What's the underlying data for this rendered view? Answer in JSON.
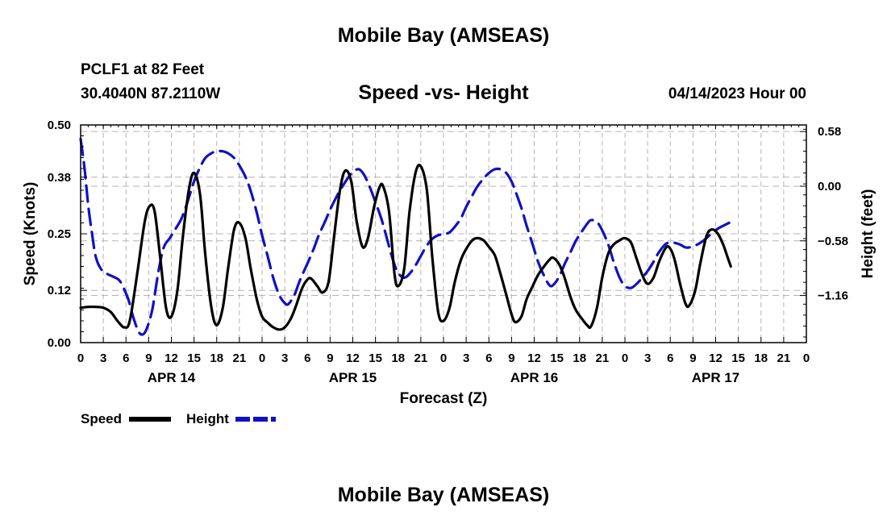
{
  "page": {
    "title_top": "Mobile Bay (AMSEAS)",
    "title_bottom": "Mobile Bay (AMSEAS)",
    "station": "PCLF1 at 82 Feet",
    "coords": "30.4040N  87.2110W",
    "subtitle": "Speed -vs- Height",
    "datetime": "04/14/2023 Hour 00"
  },
  "colors": {
    "speed": "#000000",
    "height": "#1010c8",
    "grid": "#b4b4b4"
  },
  "chart_data": {
    "type": "line",
    "title": "Speed -vs- Height",
    "xlabel": "Forecast (Z)",
    "ylabel": "Speed (Knots)",
    "y2label": "Height (feet)",
    "xlim": [
      0,
      96
    ],
    "ylim": [
      0,
      0.5
    ],
    "y2lim": [
      -1.66,
      0.65
    ],
    "grid": true,
    "legend_position": "bottom-left",
    "x_tick_labels": [
      "0",
      "3",
      "6",
      "9",
      "12",
      "15",
      "18",
      "21",
      "0",
      "3",
      "6",
      "9",
      "12",
      "15",
      "18",
      "21",
      "0",
      "3",
      "6",
      "9",
      "12",
      "15",
      "18",
      "21",
      "0",
      "3",
      "6",
      "9",
      "12",
      "15",
      "18",
      "21",
      "0"
    ],
    "y_ticks": [
      0,
      0.12,
      0.25,
      0.38,
      0.5
    ],
    "y_tick_labels": [
      "0.00",
      "0.12",
      "0.25",
      "0.38",
      "0.50"
    ],
    "y2_ticks": [
      -1.16,
      -0.58,
      0.0,
      0.58
    ],
    "y2_tick_labels": [
      "−1.16",
      "−0.58",
      "0.00",
      "0.58"
    ],
    "day_labels": [
      {
        "x": 12,
        "label": "APR 14"
      },
      {
        "x": 36,
        "label": "APR 15"
      },
      {
        "x": 60,
        "label": "APR 16"
      },
      {
        "x": 84,
        "label": "APR 17"
      }
    ],
    "series": [
      {
        "name": "Speed",
        "axis": "left",
        "style": "solid",
        "points": [
          [
            0,
            0.08
          ],
          [
            1,
            0.082
          ],
          [
            2,
            0.082
          ],
          [
            3,
            0.08
          ],
          [
            4,
            0.07
          ],
          [
            5,
            0.047
          ],
          [
            5.8,
            0.035
          ],
          [
            6.5,
            0.05
          ],
          [
            7.5,
            0.16
          ],
          [
            8.5,
            0.28
          ],
          [
            9.2,
            0.315
          ],
          [
            9.8,
            0.3
          ],
          [
            10.5,
            0.2
          ],
          [
            11.3,
            0.08
          ],
          [
            12,
            0.06
          ],
          [
            12.8,
            0.12
          ],
          [
            13.5,
            0.24
          ],
          [
            14.3,
            0.35
          ],
          [
            15,
            0.39
          ],
          [
            15.8,
            0.34
          ],
          [
            16.5,
            0.2
          ],
          [
            17.3,
            0.08
          ],
          [
            18,
            0.04
          ],
          [
            18.8,
            0.08
          ],
          [
            19.5,
            0.17
          ],
          [
            20.3,
            0.26
          ],
          [
            21,
            0.275
          ],
          [
            21.8,
            0.24
          ],
          [
            22.5,
            0.17
          ],
          [
            23.3,
            0.1
          ],
          [
            24,
            0.06
          ],
          [
            24.8,
            0.045
          ],
          [
            25.5,
            0.035
          ],
          [
            26.3,
            0.03
          ],
          [
            27,
            0.035
          ],
          [
            27.8,
            0.055
          ],
          [
            28.5,
            0.085
          ],
          [
            29.3,
            0.125
          ],
          [
            30,
            0.145
          ],
          [
            30.5,
            0.147
          ],
          [
            31.3,
            0.13
          ],
          [
            32,
            0.115
          ],
          [
            32.8,
            0.14
          ],
          [
            33.5,
            0.24
          ],
          [
            34.3,
            0.35
          ],
          [
            35,
            0.395
          ],
          [
            35.8,
            0.37
          ],
          [
            36.5,
            0.28
          ],
          [
            37.3,
            0.22
          ],
          [
            38,
            0.24
          ],
          [
            38.8,
            0.31
          ],
          [
            39.5,
            0.355
          ],
          [
            40,
            0.36
          ],
          [
            40.8,
            0.3
          ],
          [
            41.5,
            0.16
          ],
          [
            42,
            0.13
          ],
          [
            42.8,
            0.17
          ],
          [
            43.5,
            0.3
          ],
          [
            44.3,
            0.39
          ],
          [
            45,
            0.405
          ],
          [
            45.8,
            0.35
          ],
          [
            46.5,
            0.2
          ],
          [
            47.3,
            0.07
          ],
          [
            48,
            0.05
          ],
          [
            48.8,
            0.08
          ],
          [
            49.5,
            0.14
          ],
          [
            50.3,
            0.19
          ],
          [
            51,
            0.215
          ],
          [
            51.8,
            0.235
          ],
          [
            52.5,
            0.24
          ],
          [
            53.3,
            0.235
          ],
          [
            54,
            0.22
          ],
          [
            54.8,
            0.2
          ],
          [
            55.5,
            0.16
          ],
          [
            56.3,
            0.11
          ],
          [
            57,
            0.065
          ],
          [
            57.5,
            0.047
          ],
          [
            58.3,
            0.06
          ],
          [
            59,
            0.1
          ],
          [
            59.8,
            0.13
          ],
          [
            60.5,
            0.155
          ],
          [
            61.3,
            0.175
          ],
          [
            62,
            0.19
          ],
          [
            62.5,
            0.195
          ],
          [
            63.3,
            0.18
          ],
          [
            64,
            0.15
          ],
          [
            64.8,
            0.105
          ],
          [
            65.5,
            0.075
          ],
          [
            66.3,
            0.055
          ],
          [
            67,
            0.04
          ],
          [
            67.5,
            0.037
          ],
          [
            68.3,
            0.08
          ],
          [
            69,
            0.15
          ],
          [
            69.8,
            0.205
          ],
          [
            70.5,
            0.225
          ],
          [
            71.3,
            0.235
          ],
          [
            72,
            0.24
          ],
          [
            72.8,
            0.23
          ],
          [
            73.5,
            0.195
          ],
          [
            74.3,
            0.155
          ],
          [
            75,
            0.135
          ],
          [
            75.8,
            0.15
          ],
          [
            76.5,
            0.185
          ],
          [
            77.3,
            0.215
          ],
          [
            77.8,
            0.22
          ],
          [
            78.5,
            0.195
          ],
          [
            79.3,
            0.135
          ],
          [
            80,
            0.09
          ],
          [
            80.5,
            0.085
          ],
          [
            81.3,
            0.12
          ],
          [
            82,
            0.185
          ],
          [
            82.8,
            0.245
          ],
          [
            83.5,
            0.26
          ],
          [
            84.3,
            0.25
          ],
          [
            85,
            0.225
          ],
          [
            85.5,
            0.2
          ],
          [
            86,
            0.175
          ]
        ]
      },
      {
        "name": "Height",
        "axis": "right",
        "style": "dashed",
        "points": [
          [
            0,
            0.5
          ],
          [
            0.5,
            0.2
          ],
          [
            1,
            -0.2
          ],
          [
            1.5,
            -0.5
          ],
          [
            2,
            -0.75
          ],
          [
            2.7,
            -0.88
          ],
          [
            3.5,
            -0.93
          ],
          [
            4.3,
            -0.96
          ],
          [
            5,
            -0.99
          ],
          [
            5.5,
            -1.05
          ],
          [
            6.3,
            -1.2
          ],
          [
            7,
            -1.4
          ],
          [
            7.7,
            -1.55
          ],
          [
            8.3,
            -1.57
          ],
          [
            8.8,
            -1.5
          ],
          [
            9.5,
            -1.3
          ],
          [
            10.3,
            -0.9
          ],
          [
            11,
            -0.65
          ],
          [
            11.8,
            -0.55
          ],
          [
            12.5,
            -0.46
          ],
          [
            13.3,
            -0.35
          ],
          [
            14,
            -0.2
          ],
          [
            15,
            0.05
          ],
          [
            15.8,
            0.2
          ],
          [
            16.5,
            0.3
          ],
          [
            17.3,
            0.35
          ],
          [
            18,
            0.37
          ],
          [
            18.8,
            0.37
          ],
          [
            19.5,
            0.35
          ],
          [
            20.3,
            0.3
          ],
          [
            21,
            0.22
          ],
          [
            21.8,
            0.1
          ],
          [
            22.5,
            -0.05
          ],
          [
            23.3,
            -0.28
          ],
          [
            24,
            -0.52
          ],
          [
            24.8,
            -0.76
          ],
          [
            25.5,
            -0.98
          ],
          [
            26.3,
            -1.16
          ],
          [
            27,
            -1.24
          ],
          [
            27.5,
            -1.25
          ],
          [
            28.3,
            -1.15
          ],
          [
            29,
            -1.0
          ],
          [
            30,
            -0.82
          ],
          [
            30.8,
            -0.67
          ],
          [
            31.5,
            -0.52
          ],
          [
            32.3,
            -0.38
          ],
          [
            33,
            -0.25
          ],
          [
            33.8,
            -0.12
          ],
          [
            34.5,
            -0.02
          ],
          [
            35.3,
            0.08
          ],
          [
            36,
            0.15
          ],
          [
            36.8,
            0.18
          ],
          [
            37.5,
            0.12
          ],
          [
            38.3,
            -0.02
          ],
          [
            39,
            -0.17
          ],
          [
            39.8,
            -0.35
          ],
          [
            40.5,
            -0.55
          ],
          [
            41.3,
            -0.78
          ],
          [
            42,
            -0.92
          ],
          [
            42.8,
            -0.97
          ],
          [
            43.5,
            -0.93
          ],
          [
            44.3,
            -0.84
          ],
          [
            45,
            -0.74
          ],
          [
            45.8,
            -0.63
          ],
          [
            46.5,
            -0.56
          ],
          [
            47.3,
            -0.52
          ],
          [
            48,
            -0.51
          ],
          [
            48.8,
            -0.49
          ],
          [
            49.5,
            -0.43
          ],
          [
            50.3,
            -0.34
          ],
          [
            51,
            -0.22
          ],
          [
            51.8,
            -0.1
          ],
          [
            52.5,
            0.0
          ],
          [
            53.3,
            0.08
          ],
          [
            54,
            0.14
          ],
          [
            54.8,
            0.18
          ],
          [
            55.5,
            0.18
          ],
          [
            56.3,
            0.14
          ],
          [
            57,
            0.05
          ],
          [
            57.5,
            -0.05
          ],
          [
            58.3,
            -0.23
          ],
          [
            59,
            -0.42
          ],
          [
            59.8,
            -0.62
          ],
          [
            60.5,
            -0.8
          ],
          [
            61.3,
            -0.95
          ],
          [
            62,
            -1.05
          ],
          [
            62.5,
            -1.05
          ],
          [
            63.3,
            -0.96
          ],
          [
            64,
            -0.83
          ],
          [
            64.8,
            -0.7
          ],
          [
            65.5,
            -0.58
          ],
          [
            66.3,
            -0.48
          ],
          [
            67,
            -0.4
          ],
          [
            67.5,
            -0.36
          ],
          [
            68.3,
            -0.38
          ],
          [
            69,
            -0.47
          ],
          [
            69.8,
            -0.62
          ],
          [
            70.5,
            -0.8
          ],
          [
            71.3,
            -0.97
          ],
          [
            72,
            -1.06
          ],
          [
            72.8,
            -1.08
          ],
          [
            73.5,
            -1.04
          ],
          [
            74.3,
            -0.97
          ],
          [
            75,
            -0.9
          ],
          [
            75.8,
            -0.8
          ],
          [
            76.5,
            -0.7
          ],
          [
            77.3,
            -0.62
          ],
          [
            77.8,
            -0.6
          ],
          [
            78.5,
            -0.6
          ],
          [
            79.3,
            -0.62
          ],
          [
            80,
            -0.65
          ],
          [
            80.5,
            -0.65
          ],
          [
            81.3,
            -0.63
          ],
          [
            82,
            -0.6
          ],
          [
            82.8,
            -0.55
          ],
          [
            83.5,
            -0.5
          ],
          [
            84.3,
            -0.45
          ],
          [
            85,
            -0.42
          ],
          [
            85.5,
            -0.4
          ],
          [
            86,
            -0.38
          ]
        ]
      }
    ]
  },
  "legend": [
    {
      "label": "Speed",
      "series": "speed"
    },
    {
      "label": "Height",
      "series": "height"
    }
  ]
}
